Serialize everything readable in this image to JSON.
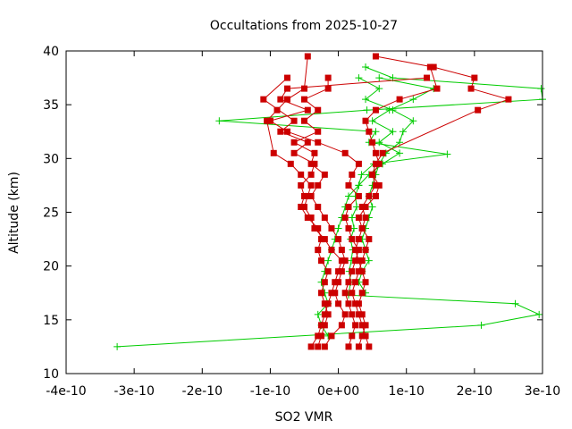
{
  "chart_data": {
    "type": "line",
    "title": "Occultations from 2025-10-27",
    "xlabel": "SO2 VMR",
    "ylabel": "Altitude (km)",
    "xlim": [
      -4e-10,
      3e-10
    ],
    "ylim": [
      10,
      40
    ],
    "x_ticks": [
      -4e-10,
      -3e-10,
      -2e-10,
      -1e-10,
      0,
      1e-10,
      2e-10,
      3e-10
    ],
    "x_tick_labels": [
      "-4e-10",
      "-3e-10",
      "-2e-10",
      "-1e-10",
      "0e+00",
      "1e-10",
      "2e-10",
      "3e-10"
    ],
    "y_ticks": [
      10,
      15,
      20,
      25,
      30,
      35,
      40
    ],
    "y_tick_labels": [
      "10",
      "15",
      "20",
      "25",
      "30",
      "35",
      "40"
    ],
    "grid": false,
    "legend": "none",
    "series": [
      {
        "name": "green-profile-1",
        "color": "#00cc00",
        "marker": "plus",
        "x": [
          -3.25e-10,
          2.1e-10,
          2.95e-10,
          2.6e-10,
          1.5e-11,
          1.8e-11,
          1.6e-11,
          1.9e-11,
          2.1e-11,
          1.8e-11,
          2.3e-11,
          2e-11,
          2.7e-11,
          2.5e-11,
          3e-11,
          3.4e-11,
          5.2e-11,
          1.6e-10,
          4.5e-11,
          5.5e-11,
          -1.75e-10,
          4.2e-11,
          3e-10,
          2.98e-10,
          8e-11,
          4e-11
        ],
        "y": [
          12.5,
          14.5,
          15.5,
          16.5,
          17.3,
          18.5,
          19.5,
          20.5,
          21.5,
          22.5,
          23.5,
          24.5,
          25.5,
          26.5,
          27.5,
          28.5,
          29.5,
          30.4,
          31.5,
          32.5,
          33.5,
          34.5,
          35.5,
          36.5,
          37.5,
          38.5
        ]
      },
      {
        "name": "green-profile-2",
        "color": "#00cc00",
        "marker": "plus",
        "x": [
          -1.5e-11,
          -2.5e-11,
          -3e-11,
          -1.5e-11,
          -2e-11,
          -2.5e-11,
          -2e-11,
          -1.5e-11,
          -1e-11,
          -5e-12,
          0,
          5e-12,
          1e-11,
          1.5e-11,
          3e-11,
          4.5e-11,
          6.5e-11,
          9e-11,
          6e-11,
          8e-11,
          5e-11,
          7.5e-11,
          1.1e-10,
          1.4e-10,
          6e-11
        ],
        "y": [
          13.5,
          14.5,
          15.5,
          16.5,
          17.5,
          18.5,
          19.5,
          20.5,
          21.5,
          22.5,
          23.5,
          24.5,
          25.5,
          26.5,
          27.5,
          28.5,
          29.5,
          30.5,
          31.5,
          32.5,
          33.5,
          34.5,
          35.5,
          36.5,
          37.5
        ]
      },
      {
        "name": "green-profile-3",
        "color": "#00cc00",
        "marker": "plus",
        "x": [
          4e-11,
          3e-11,
          3.5e-11,
          4.5e-11,
          4e-11,
          3.5e-11,
          4e-11,
          4.5e-11,
          5e-11,
          4.5e-11,
          5e-11,
          5.5e-11,
          6e-11,
          7e-11,
          9e-11,
          9.5e-11,
          1.1e-10,
          8e-11,
          4e-11,
          6e-11,
          3e-11
        ],
        "y": [
          17.5,
          18.5,
          19.5,
          20.5,
          21.5,
          22.5,
          23.5,
          24.5,
          25.5,
          26.5,
          27.5,
          28.5,
          29.5,
          30.5,
          31.5,
          32.5,
          33.5,
          34.5,
          35.5,
          36.5,
          37.5
        ]
      },
      {
        "name": "red-profile-1",
        "color": "#cc0000",
        "marker": "square",
        "x": [
          -4e-11,
          -3e-11,
          -2.5e-11,
          -2e-11,
          -1.5e-11,
          -1e-11,
          -5e-12,
          0,
          5e-12,
          -1e-11,
          -2e-11,
          -3.5e-11,
          -4e-11,
          -5e-11,
          -4.5e-11,
          -4e-11,
          -5.5e-11,
          -7e-11,
          -9.5e-11,
          -1.05e-10,
          -9e-11,
          -7.5e-11,
          -5e-11,
          -4.5e-11
        ],
        "y": [
          12.5,
          13.5,
          14.5,
          15.5,
          16.5,
          17.5,
          18.5,
          19.5,
          20.5,
          21.5,
          22.5,
          23.5,
          24.5,
          25.5,
          26.5,
          27.5,
          28.5,
          29.5,
          30.5,
          33.5,
          34.5,
          35.5,
          36.5,
          39.5
        ]
      },
      {
        "name": "red-profile-2",
        "color": "#cc0000",
        "marker": "square",
        "x": [
          4.5e-11,
          4e-11,
          3.5e-11,
          3e-11,
          2.5e-11,
          2e-11,
          2.5e-11,
          3e-11,
          3.5e-11,
          4e-11,
          4.5e-11,
          3.5e-11,
          3e-11,
          4e-11,
          5.5e-11,
          6e-11,
          5e-11,
          5.5e-11,
          6.5e-11,
          2.05e-10,
          2.5e-10,
          1.95e-10,
          2e-10,
          1.4e-10,
          5.5e-11
        ],
        "y": [
          12.5,
          13.5,
          14.5,
          15.5,
          16.5,
          17.5,
          18.5,
          19.5,
          20.5,
          21.5,
          22.5,
          23.5,
          24.5,
          25.5,
          26.5,
          27.5,
          28.5,
          29.5,
          30.5,
          34.5,
          35.5,
          36.5,
          37.5,
          38.5,
          39.5
        ]
      },
      {
        "name": "red-profile-3",
        "color": "#cc0000",
        "marker": "square",
        "x": [
          1.5e-11,
          2e-11,
          2.5e-11,
          2e-11,
          1.5e-11,
          1e-11,
          1.5e-11,
          2e-11,
          2.5e-11,
          3e-11,
          2e-11,
          1.5e-11,
          1e-11,
          1.5e-11,
          3e-11,
          1.5e-11,
          2e-11,
          3e-11,
          1e-11,
          -3e-11,
          -7.5e-11,
          -1e-10,
          -4.5e-11,
          -8.5e-11,
          -7.5e-11,
          1.3e-10
        ],
        "y": [
          12.5,
          13.5,
          14.5,
          15.5,
          16.5,
          17.5,
          18.5,
          19.5,
          20.5,
          21.5,
          22.5,
          23.5,
          24.5,
          25.5,
          26.5,
          27.5,
          28.5,
          29.5,
          30.5,
          31.5,
          32.5,
          33.5,
          34.5,
          35.5,
          36.5,
          37.5
        ]
      },
      {
        "name": "red-profile-4",
        "color": "#cc0000",
        "marker": "square",
        "x": [
          -2e-11,
          -1e-11,
          5e-12,
          1e-11,
          0,
          -5e-12,
          0,
          5e-12,
          1e-11,
          5e-12,
          0,
          -1e-11,
          -2e-11,
          -3e-11,
          -4e-11,
          -3e-11,
          -2e-11,
          -4e-11,
          -3.5e-11,
          -6.5e-11,
          -3e-11,
          -5e-11,
          -3e-11,
          -5e-11,
          -1.5e-11,
          -1.5e-11
        ],
        "y": [
          12.5,
          13.5,
          14.5,
          15.5,
          16.5,
          17.5,
          18.5,
          19.5,
          20.5,
          21.5,
          22.5,
          23.5,
          24.5,
          25.5,
          26.5,
          27.5,
          28.5,
          29.5,
          30.5,
          31.5,
          32.5,
          33.5,
          34.5,
          35.5,
          36.5,
          37.5
        ]
      },
      {
        "name": "red-profile-5",
        "color": "#cc0000",
        "marker": "square",
        "x": [
          3e-11,
          3.5e-11,
          4e-11,
          3.5e-11,
          3e-11,
          3.5e-11,
          4e-11,
          3.5e-11,
          3e-11,
          2.5e-11,
          3e-11,
          3.5e-11,
          4e-11,
          3.5e-11,
          4.5e-11,
          5.5e-11,
          5e-11,
          6e-11,
          5.5e-11,
          5e-11,
          4.5e-11,
          4e-11,
          5.5e-11,
          9e-11,
          1.45e-10,
          1.35e-10
        ],
        "y": [
          12.5,
          13.5,
          14.5,
          15.5,
          16.5,
          17.5,
          18.5,
          19.5,
          20.5,
          21.5,
          22.5,
          23.5,
          24.5,
          25.5,
          26.5,
          27.5,
          28.5,
          29.5,
          30.5,
          31.5,
          32.5,
          33.5,
          34.5,
          35.5,
          36.5,
          38.5
        ]
      },
      {
        "name": "red-profile-6",
        "color": "#cc0000",
        "marker": "square",
        "x": [
          -3e-11,
          -2.5e-11,
          -2e-11,
          -1.5e-11,
          -2e-11,
          -2.5e-11,
          -2e-11,
          -1.5e-11,
          -2.5e-11,
          -3e-11,
          -2.5e-11,
          -3e-11,
          -4.5e-11,
          -5.5e-11,
          -5e-11,
          -5.5e-11,
          -4e-11,
          -3.5e-11,
          -6.5e-11,
          -4.5e-11,
          -8.5e-11,
          -6.5e-11,
          -1.1e-10,
          -7.5e-11
        ],
        "y": [
          12.5,
          13.5,
          14.5,
          15.5,
          16.5,
          17.5,
          18.5,
          19.5,
          20.5,
          21.5,
          22.5,
          23.5,
          24.5,
          25.5,
          26.5,
          27.5,
          28.5,
          29.5,
          30.5,
          31.5,
          32.5,
          33.5,
          35.5,
          37.5
        ]
      }
    ]
  }
}
